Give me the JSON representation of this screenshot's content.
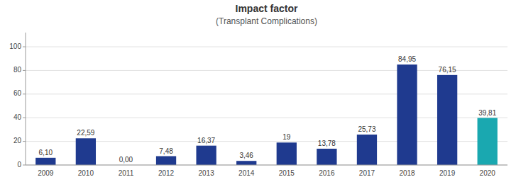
{
  "chart_data": {
    "type": "bar",
    "title": "Impact factor",
    "subtitle": "(Transplant Complications)",
    "categories": [
      "2009",
      "2010",
      "2011",
      "2012",
      "2013",
      "2014",
      "2015",
      "2016",
      "2017",
      "2018",
      "2019",
      "2020"
    ],
    "values": [
      6.1,
      22.59,
      0.0,
      7.48,
      16.37,
      3.46,
      19,
      13.78,
      25.73,
      84.95,
      76.15,
      39.81
    ],
    "value_labels": [
      "6,10",
      "22,59",
      "0,00",
      "7,48",
      "16,37",
      "3,46",
      "19",
      "13,78",
      "25,73",
      "84,95",
      "76,15",
      "39,81"
    ],
    "colors": [
      "#1f3a8f",
      "#1f3a8f",
      "#1f3a8f",
      "#1f3a8f",
      "#1f3a8f",
      "#1f3a8f",
      "#1f3a8f",
      "#1f3a8f",
      "#1f3a8f",
      "#1f3a8f",
      "#1f3a8f",
      "#1aa8b0"
    ],
    "ylim": [
      0,
      112
    ],
    "yticks": [
      0,
      20,
      40,
      60,
      80,
      100
    ],
    "grid": true,
    "data_labels": true
  }
}
